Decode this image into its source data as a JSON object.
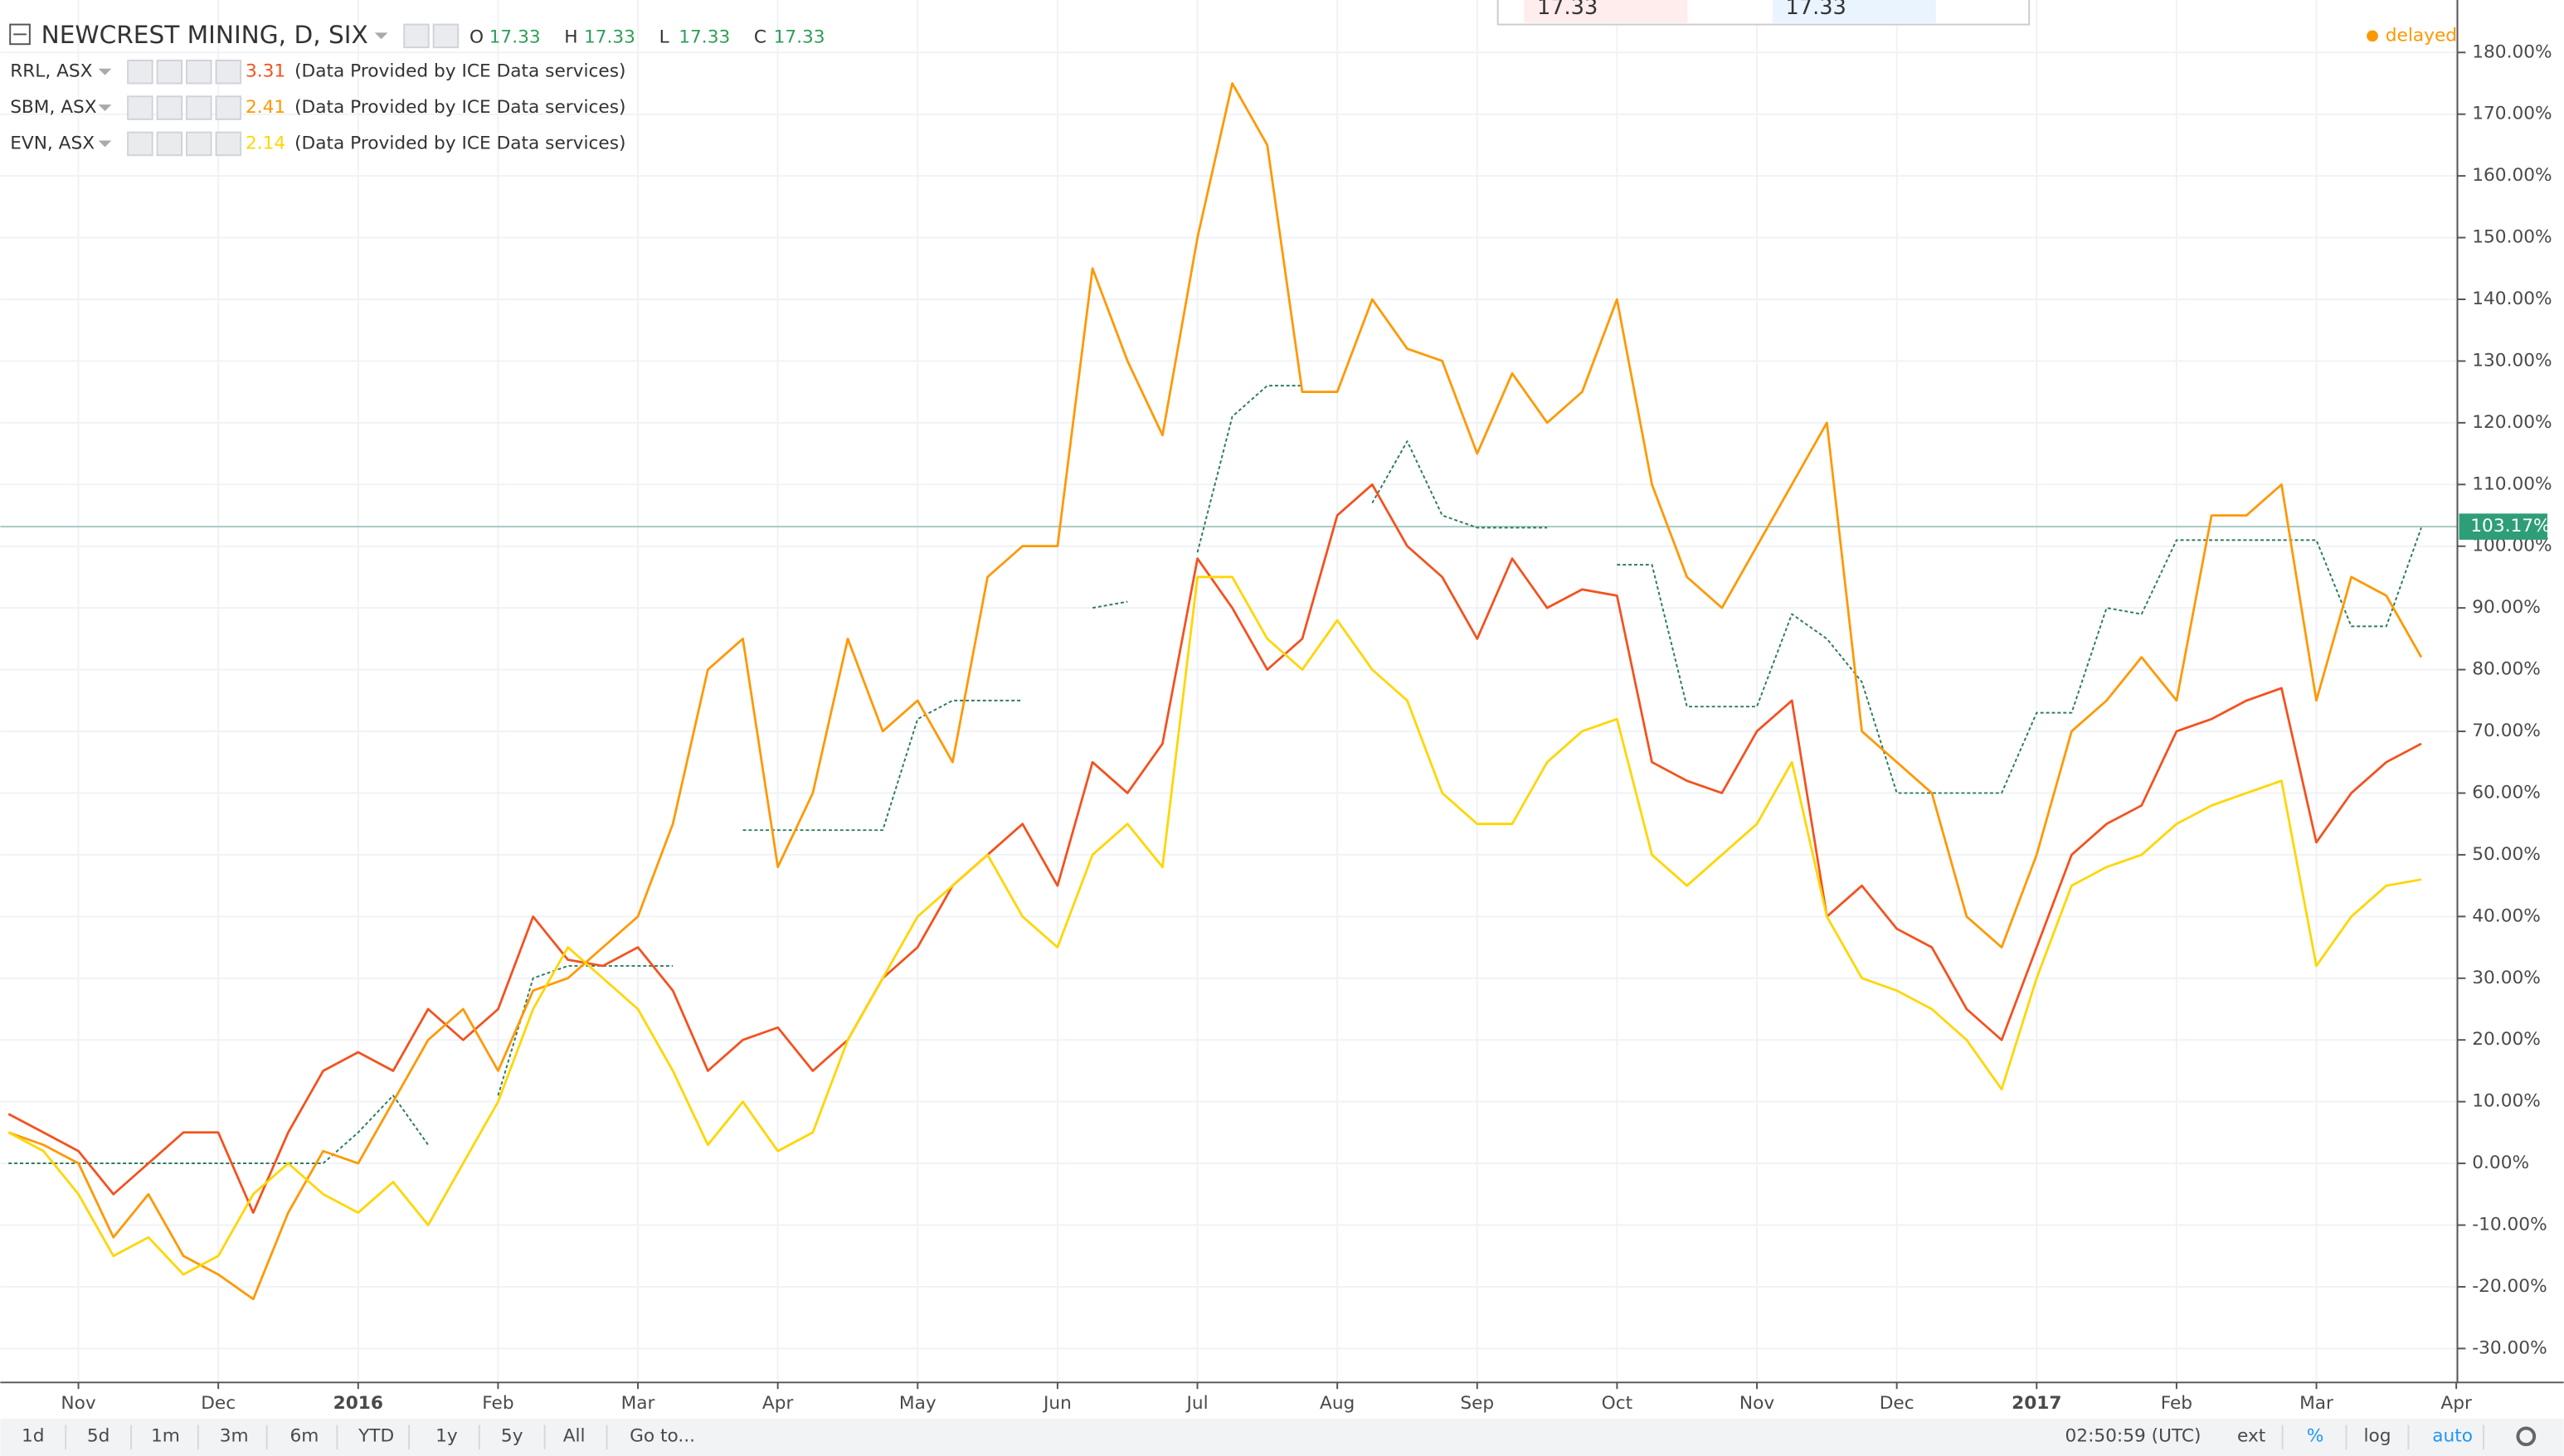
{
  "chart_data": {
    "type": "line",
    "title": "NEWCREST MINING, D, SIX",
    "ohlc": [
      {
        "label": "O",
        "value": 17.33
      },
      {
        "label": "H",
        "value": 17.33
      },
      {
        "label": "L",
        "value": 17.33
      },
      {
        "label": "C",
        "value": 17.33
      }
    ],
    "status": "delayed",
    "top_overlay": [
      "17.33",
      "17.33"
    ],
    "categories": [
      null,
      null,
      "Nov",
      null,
      null,
      null,
      "Dec",
      null,
      null,
      null,
      "2016",
      null,
      null,
      null,
      "Feb",
      null,
      null,
      null,
      "Mar",
      null,
      null,
      null,
      "Apr",
      null,
      null,
      null,
      "May",
      null,
      null,
      null,
      "Jun",
      null,
      null,
      null,
      "Jul",
      null,
      null,
      null,
      "Aug",
      null,
      null,
      null,
      "Sep",
      null,
      null,
      null,
      "Oct",
      null,
      null,
      null,
      "Nov",
      null,
      null,
      null,
      "Dec",
      null,
      null,
      null,
      "2017",
      null,
      null,
      null,
      "Feb",
      null,
      null,
      null,
      "Mar",
      null,
      null,
      null,
      "Apr"
    ],
    "series": [
      {
        "name": "NEWCREST MINING, D, SIX",
        "color": "#2e7d5b",
        "dashed": true,
        "values": [
          0,
          0,
          0,
          0,
          0,
          0,
          0,
          0,
          0,
          0,
          5,
          11,
          3,
          null,
          11,
          30,
          32,
          32,
          32,
          32,
          null,
          54,
          54,
          54,
          54,
          54,
          72,
          75,
          75,
          75,
          null,
          90,
          91,
          null,
          99,
          121,
          126,
          126,
          null,
          107,
          117,
          105,
          103,
          103,
          103,
          null,
          97,
          97,
          74,
          74,
          74,
          89,
          85,
          78,
          60,
          60,
          60,
          60,
          73,
          73,
          90,
          89,
          101,
          101,
          101,
          101,
          101,
          87,
          87,
          103,
          null
        ]
      },
      {
        "name": "RRL, ASX",
        "color": "#f4511e",
        "last": 3.31,
        "source": "(Data Provided by ICE Data services)",
        "values": [
          8,
          5,
          2,
          -5,
          0,
          5,
          5,
          -8,
          5,
          15,
          18,
          15,
          25,
          20,
          25,
          40,
          33,
          32,
          35,
          28,
          15,
          20,
          22,
          15,
          20,
          30,
          35,
          45,
          50,
          55,
          45,
          65,
          60,
          68,
          98,
          90,
          80,
          85,
          105,
          110,
          100,
          95,
          85,
          98,
          90,
          93,
          92,
          65,
          62,
          60,
          70,
          75,
          40,
          45,
          38,
          35,
          25,
          20,
          35,
          50,
          55,
          58,
          70,
          72,
          75,
          77,
          52,
          60,
          65,
          68,
          null
        ]
      },
      {
        "name": "SBM, ASX",
        "color": "#ff9800",
        "last": 2.41,
        "source": "(Data Provided by ICE Data services)",
        "values": [
          5,
          3,
          0,
          -12,
          -5,
          -15,
          -18,
          -22,
          -8,
          2,
          0,
          10,
          20,
          25,
          15,
          28,
          30,
          35,
          40,
          55,
          80,
          85,
          48,
          60,
          85,
          70,
          75,
          65,
          95,
          100,
          100,
          145,
          130,
          118,
          150,
          175,
          165,
          125,
          125,
          140,
          132,
          130,
          115,
          128,
          120,
          125,
          140,
          110,
          95,
          90,
          100,
          110,
          120,
          70,
          65,
          60,
          40,
          35,
          50,
          70,
          75,
          82,
          75,
          105,
          105,
          110,
          75,
          95,
          92,
          82,
          null
        ]
      },
      {
        "name": "EVN, ASX",
        "color": "#ffd600",
        "last": 2.14,
        "source": "(Data Provided by ICE Data services)",
        "values": [
          5,
          2,
          -5,
          -15,
          -12,
          -18,
          -15,
          -5,
          0,
          -5,
          -8,
          -3,
          -10,
          0,
          10,
          25,
          35,
          30,
          25,
          15,
          3,
          10,
          2,
          5,
          20,
          30,
          40,
          45,
          50,
          40,
          35,
          50,
          55,
          48,
          95,
          95,
          85,
          80,
          88,
          80,
          75,
          60,
          55,
          55,
          65,
          70,
          72,
          50,
          45,
          50,
          55,
          65,
          40,
          30,
          28,
          25,
          20,
          12,
          30,
          45,
          48,
          50,
          55,
          58,
          60,
          62,
          32,
          40,
          45,
          46,
          null
        ]
      }
    ],
    "ylim": [
      -35.5,
      188.5
    ],
    "yticks": [
      {
        "value": -30,
        "label": "-30.00%"
      },
      {
        "value": -20,
        "label": "-20.00%"
      },
      {
        "value": -10,
        "label": "-10.00%"
      },
      {
        "value": 0,
        "label": "0.00%"
      },
      {
        "value": 10,
        "label": "10.00%"
      },
      {
        "value": 20,
        "label": "20.00%"
      },
      {
        "value": 30,
        "label": "30.00%"
      },
      {
        "value": 40,
        "label": "40.00%"
      },
      {
        "value": 50,
        "label": "50.00%"
      },
      {
        "value": 60,
        "label": "60.00%"
      },
      {
        "value": 70,
        "label": "70.00%"
      },
      {
        "value": 80,
        "label": "80.00%"
      },
      {
        "value": 90,
        "label": "90.00%"
      },
      {
        "value": 100,
        "label": "100.00%"
      },
      {
        "value": 110,
        "label": "110.00%"
      },
      {
        "value": 120,
        "label": "120.00%"
      },
      {
        "value": 130,
        "label": "130.00%"
      },
      {
        "value": 140,
        "label": "140.00%"
      },
      {
        "value": 150,
        "label": "150.00%"
      },
      {
        "value": 160,
        "label": "160.00%"
      },
      {
        "value": 170,
        "label": "170.00%"
      },
      {
        "value": 180,
        "label": "180.00%"
      }
    ],
    "last_value": {
      "value": 103.17,
      "label": "103.17%"
    },
    "grid": true,
    "toolbar": {
      "ranges": [
        "1d",
        "5d",
        "1m",
        "3m",
        "6m",
        "YTD",
        "1y",
        "5y",
        "All"
      ],
      "goto": "Go to...",
      "time": "02:50:59 (UTC)",
      "options": [
        "ext",
        "%",
        "log",
        "auto"
      ]
    }
  }
}
